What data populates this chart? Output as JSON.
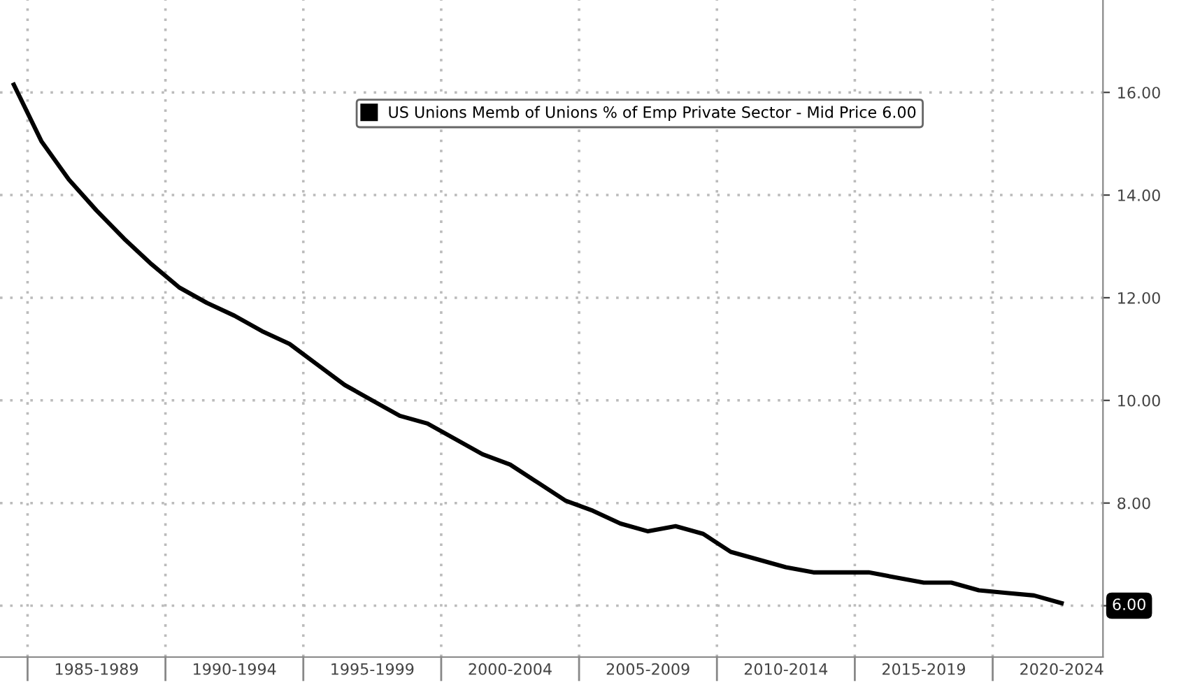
{
  "chart_data": {
    "type": "line",
    "categories": [
      null,
      null,
      null,
      "1985-1989",
      null,
      null,
      null,
      null,
      "1990-1994",
      null,
      null,
      null,
      null,
      "1995-1999",
      null,
      null,
      null,
      null,
      "2000-2004",
      null,
      null,
      null,
      null,
      "2005-2009",
      null,
      null,
      null,
      null,
      "2010-2014",
      null,
      null,
      null,
      null,
      "2015-2019",
      null,
      null,
      null,
      null,
      "2020-2024",
      null
    ],
    "series": [
      {
        "name": "US Unions Memb of Unions % of Emp Private Sector - Mid Price 6.00",
        "color": "#000000",
        "values": [
          16.15,
          15.05,
          14.3,
          13.7,
          13.15,
          12.65,
          12.2,
          11.9,
          11.65,
          11.35,
          11.1,
          10.7,
          10.3,
          10.0,
          9.7,
          9.55,
          9.25,
          8.95,
          8.75,
          8.4,
          8.05,
          7.85,
          7.6,
          7.45,
          7.55,
          7.4,
          7.05,
          6.9,
          6.75,
          6.65,
          6.65,
          6.65,
          6.55,
          6.45,
          6.45,
          6.3,
          6.25,
          6.2,
          6.05,
          null
        ]
      }
    ],
    "ylim": [
      5,
      17.8
    ],
    "yticks": [
      {
        "value": 6,
        "label": null
      },
      {
        "value": 8,
        "label": "8.00"
      },
      {
        "value": 10,
        "label": "10.00"
      },
      {
        "value": 12,
        "label": "12.00"
      },
      {
        "value": 14,
        "label": "14.00"
      },
      {
        "value": 16,
        "label": "16.00"
      }
    ],
    "annotations": [
      {
        "text": "6.00",
        "y": 6
      }
    ],
    "grid": true,
    "legend": "top",
    "line_style": "solid",
    "marker": "none"
  }
}
